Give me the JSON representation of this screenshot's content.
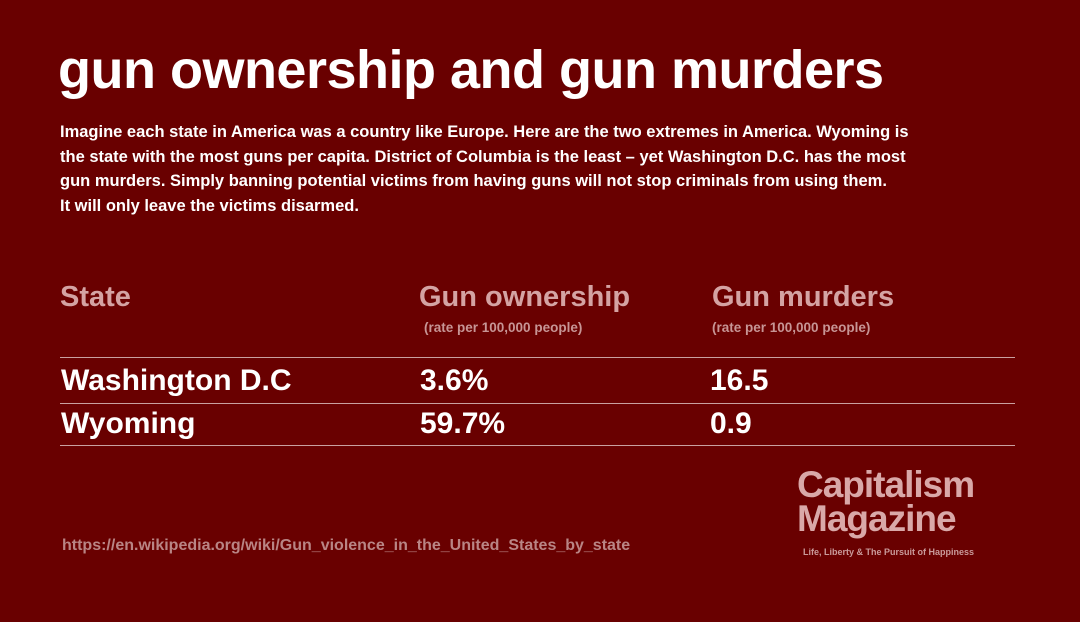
{
  "title": "gun ownership and gun murders",
  "intro": {
    "lines": [
      "Imagine each state in America was a country like Europe. Here are the two extremes in America. Wyoming is",
      "the state with the most guns per capita. District of Columbia is the least – yet Washington D.C. has the most",
      "gun murders. Simply banning potential victims from having guns will not stop criminals from using them.",
      "It will only leave the victims disarmed."
    ]
  },
  "table": {
    "headers": [
      {
        "label": "State",
        "sub": ""
      },
      {
        "label": "Gun ownership",
        "sub": "(rate per 100,000 people)"
      },
      {
        "label": "Gun murders",
        "sub": "(rate per 100,000 people)"
      }
    ],
    "rows": [
      [
        "Washington D.C",
        "3.6%",
        "16.5"
      ],
      [
        "Wyoming",
        "59.7%",
        "0.9"
      ]
    ]
  },
  "logo": {
    "line1": "Capitalism",
    "line2": "Magazine",
    "tagline": "Life, Liberty & The Pursuit of Happiness"
  },
  "source": "https://en.wikipedia.org/wiki/Gun_violence_in_the_United_States_by_state",
  "colors": {
    "background": "#690000",
    "header_text": "#d4a3a3",
    "body_text": "#ffffff"
  }
}
